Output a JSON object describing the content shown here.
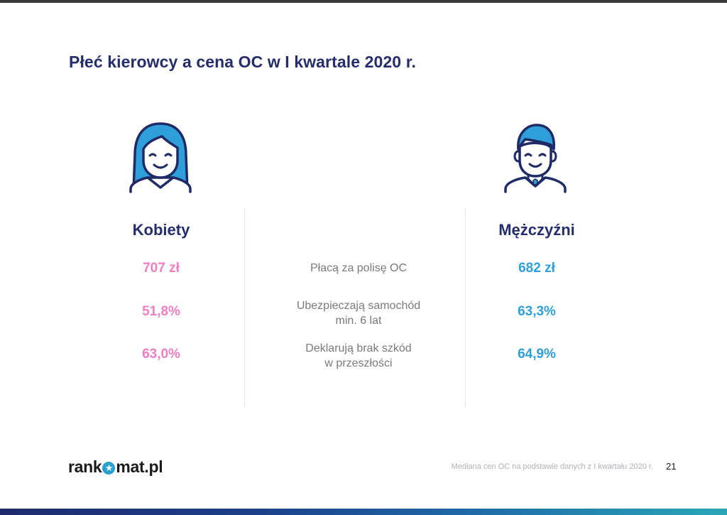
{
  "slide": {
    "title": "Płeć kierowcy a cena OC w I kwartale 2020 r.",
    "page_number": "21",
    "footnote": "Mediana cen OC na podstawie danych z I kwartału 2020 r."
  },
  "columns": {
    "women": {
      "heading": "Kobiety",
      "icon": "woman-avatar-icon",
      "color": "#ee7fc0"
    },
    "men": {
      "heading": "Mężczyźni",
      "icon": "man-avatar-icon",
      "color": "#2e9fd8"
    }
  },
  "rows": [
    {
      "label_line1": "Płacą za polisę OC",
      "label_line2": "",
      "women": "707 zł",
      "men": "682 zł"
    },
    {
      "label_line1": "Ubezpieczają samochód",
      "label_line2": "min. 6 lat",
      "women": "51,8%",
      "men": "63,3%"
    },
    {
      "label_line1": "Deklarują brak szkód",
      "label_line2": "w przeszłości",
      "women": "63,0%",
      "men": "64,9%"
    }
  ],
  "logo": {
    "part1": "rank",
    "part2": "mat.pl",
    "icon": "star-circle-icon"
  },
  "colors": {
    "title": "#252e6a",
    "accent_blue": "#2a9fd0"
  }
}
